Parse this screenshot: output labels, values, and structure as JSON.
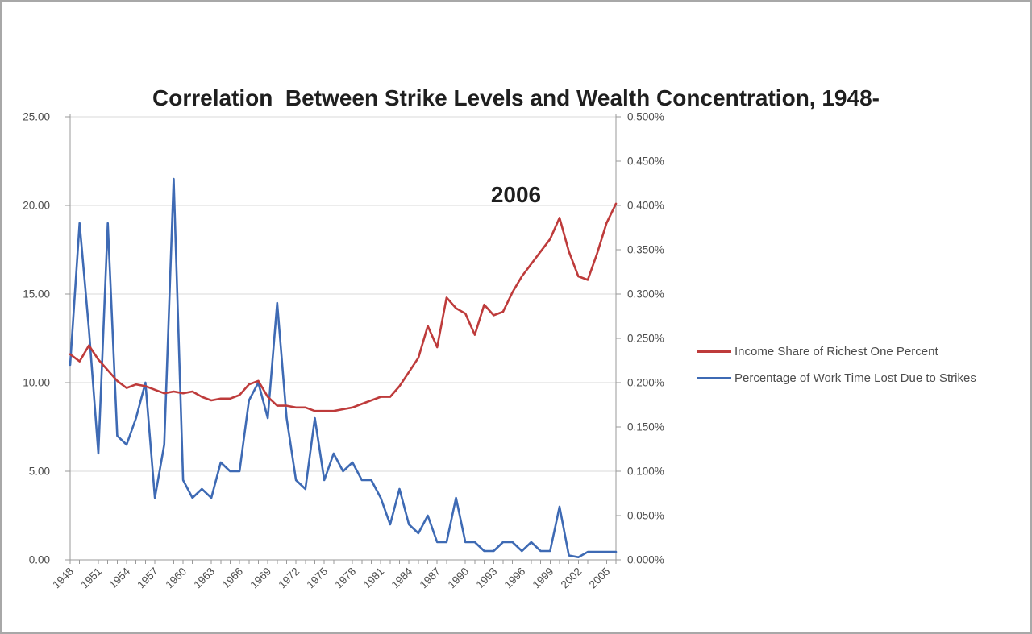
{
  "page": {
    "background": "#ffffff",
    "border_color": "#a8a8a8"
  },
  "title": {
    "line1": "Correlation  Between Strike Levels and Wealth Concentration, 1948-",
    "line2": "2006"
  },
  "chart_data": {
    "type": "line",
    "title": "Correlation Between Strike Levels and Wealth Concentration, 1948-2006",
    "grid": "horizontal",
    "legend_position": "right",
    "x": [
      1948,
      1949,
      1950,
      1951,
      1952,
      1953,
      1954,
      1955,
      1956,
      1957,
      1958,
      1959,
      1960,
      1961,
      1962,
      1963,
      1964,
      1965,
      1966,
      1967,
      1968,
      1969,
      1970,
      1971,
      1972,
      1973,
      1974,
      1975,
      1976,
      1977,
      1978,
      1979,
      1980,
      1981,
      1982,
      1983,
      1984,
      1985,
      1986,
      1987,
      1988,
      1989,
      1990,
      1991,
      1992,
      1993,
      1994,
      1995,
      1996,
      1997,
      1998,
      1999,
      2000,
      2001,
      2002,
      2003,
      2004,
      2005,
      2006
    ],
    "x_axis": {
      "tick_labels": [
        "1948",
        "1951",
        "1954",
        "1957",
        "1960",
        "1963",
        "1966",
        "1969",
        "1972",
        "1975",
        "1978",
        "1981",
        "1984",
        "1987",
        "1990",
        "1993",
        "1996",
        "1999",
        "2002",
        "2005"
      ]
    },
    "left_axis": {
      "min": 0,
      "max": 25,
      "tick_labels": [
        "0.00",
        "5.00",
        "10.00",
        "15.00",
        "20.00",
        "25.00"
      ]
    },
    "right_axis": {
      "min": 0,
      "max": 0.5,
      "tick_labels": [
        "0.000%",
        "0.050%",
        "0.100%",
        "0.150%",
        "0.200%",
        "0.250%",
        "0.300%",
        "0.350%",
        "0.400%",
        "0.450%",
        "0.500%"
      ]
    },
    "series": [
      {
        "name": "Income Share of Richest One Percent",
        "axis": "left",
        "color": "#be3b3b",
        "values": [
          11.6,
          11.2,
          12.1,
          11.3,
          10.7,
          10.1,
          9.7,
          9.9,
          9.8,
          9.6,
          9.4,
          9.5,
          9.4,
          9.5,
          9.2,
          9.0,
          9.1,
          9.1,
          9.3,
          9.9,
          10.1,
          9.2,
          8.7,
          8.7,
          8.6,
          8.6,
          8.4,
          8.4,
          8.4,
          8.5,
          8.6,
          8.8,
          9.0,
          9.2,
          9.2,
          9.8,
          10.6,
          11.4,
          13.2,
          12.0,
          14.8,
          14.2,
          13.9,
          12.7,
          14.4,
          13.8,
          14.0,
          15.1,
          16.0,
          16.7,
          17.4,
          18.1,
          19.3,
          17.4,
          16.0,
          15.8,
          17.3,
          19.0,
          20.1
        ]
      },
      {
        "name": "Percentage of Work Time Lost Due to Strikes",
        "axis": "right",
        "color": "#3e6ab4",
        "values": [
          0.22,
          0.38,
          0.26,
          0.12,
          0.38,
          0.14,
          0.13,
          0.16,
          0.2,
          0.07,
          0.13,
          0.43,
          0.09,
          0.07,
          0.08,
          0.07,
          0.11,
          0.1,
          0.1,
          0.18,
          0.2,
          0.16,
          0.29,
          0.16,
          0.09,
          0.08,
          0.16,
          0.09,
          0.12,
          0.1,
          0.11,
          0.09,
          0.09,
          0.07,
          0.04,
          0.08,
          0.04,
          0.03,
          0.05,
          0.02,
          0.02,
          0.07,
          0.02,
          0.02,
          0.01,
          0.01,
          0.02,
          0.02,
          0.01,
          0.02,
          0.01,
          0.01,
          0.06,
          0.005,
          0.003,
          0.009,
          0.009,
          0.009,
          0.009
        ]
      }
    ],
    "colors": {
      "gridline": "#d9d9d9",
      "axis": "#9a9a9a",
      "tick_label": "#4d4d4d"
    }
  }
}
